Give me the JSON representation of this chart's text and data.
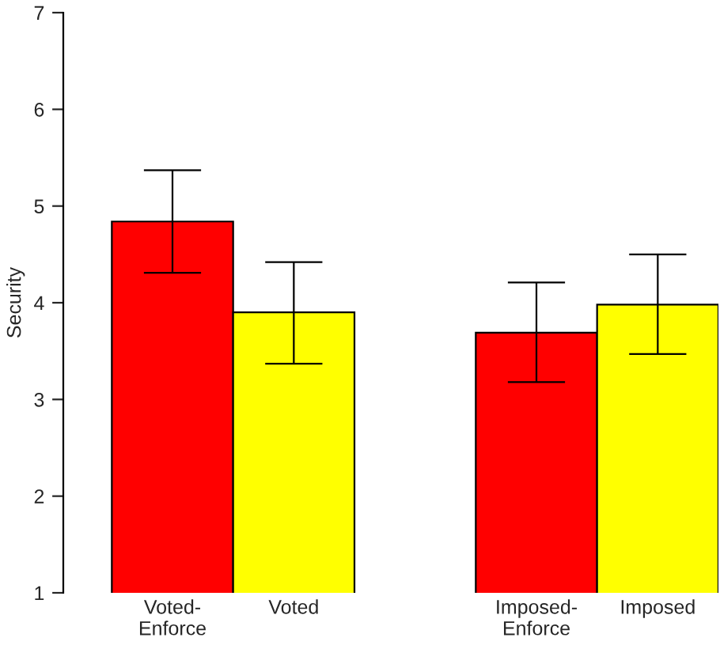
{
  "chart_data": {
    "type": "bar",
    "ylabel": "Security",
    "categories": [
      "Voted-\nEnforce",
      "Voted",
      null,
      "Imposed-\nEnforce",
      "Imposed"
    ],
    "values": [
      4.84,
      3.9,
      null,
      3.69,
      3.98
    ],
    "colors": [
      "#ff0000",
      "#ffff00",
      null,
      "#ff0000",
      "#ffff00"
    ],
    "errors": [
      [
        4.31,
        5.37
      ],
      [
        3.37,
        4.42
      ],
      null,
      [
        3.18,
        4.21
      ],
      [
        3.47,
        4.5
      ]
    ],
    "ylim": [
      1,
      7
    ],
    "yticks": [
      1,
      2,
      3,
      4,
      5,
      6,
      7
    ],
    "grid": false,
    "legend": false
  }
}
